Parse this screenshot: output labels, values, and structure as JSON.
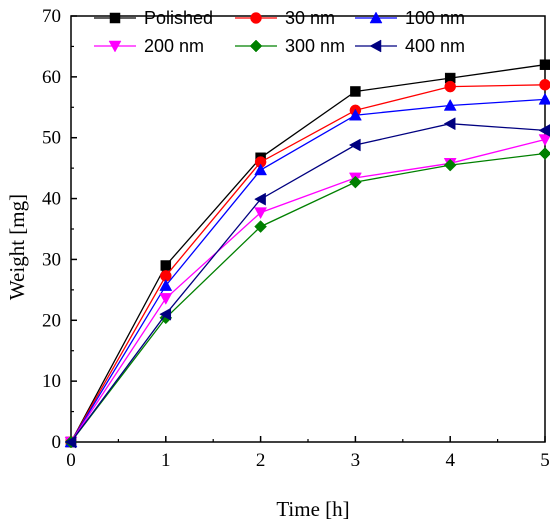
{
  "chart_data": {
    "type": "line",
    "xlabel": "Time [h]",
    "ylabel": "Weight [mg]",
    "xlim": [
      0,
      5
    ],
    "ylim": [
      0,
      70
    ],
    "x": [
      0,
      1,
      2,
      3,
      4,
      5
    ],
    "x_ticks": [
      "0",
      "1",
      "2",
      "3",
      "4",
      "5"
    ],
    "y_ticks": [
      "0",
      "10",
      "20",
      "30",
      "40",
      "50",
      "60",
      "70"
    ],
    "grid": false,
    "legend_position": "top",
    "series": [
      {
        "name": "Polished",
        "color": "#000000",
        "marker": "square",
        "values": [
          0,
          29.0,
          46.7,
          57.6,
          59.8,
          62.0
        ]
      },
      {
        "name": "30 nm",
        "color": "#ff0000",
        "marker": "circle",
        "values": [
          0,
          27.3,
          46.0,
          54.5,
          58.4,
          58.7
        ]
      },
      {
        "name": "100 nm",
        "color": "#0000ff",
        "marker": "triangle-up",
        "values": [
          0,
          25.7,
          44.7,
          53.7,
          55.3,
          56.3
        ]
      },
      {
        "name": "200 nm",
        "color": "#ff00ff",
        "marker": "triangle-down",
        "values": [
          0,
          23.6,
          37.7,
          43.4,
          45.8,
          49.7
        ]
      },
      {
        "name": "300 nm",
        "color": "#008000",
        "marker": "diamond",
        "values": [
          0,
          20.4,
          35.4,
          42.7,
          45.5,
          47.4
        ]
      },
      {
        "name": "400 nm",
        "color": "#000080",
        "marker": "triangle-left",
        "values": [
          0,
          21.0,
          39.9,
          48.8,
          52.3,
          51.2
        ]
      }
    ]
  }
}
